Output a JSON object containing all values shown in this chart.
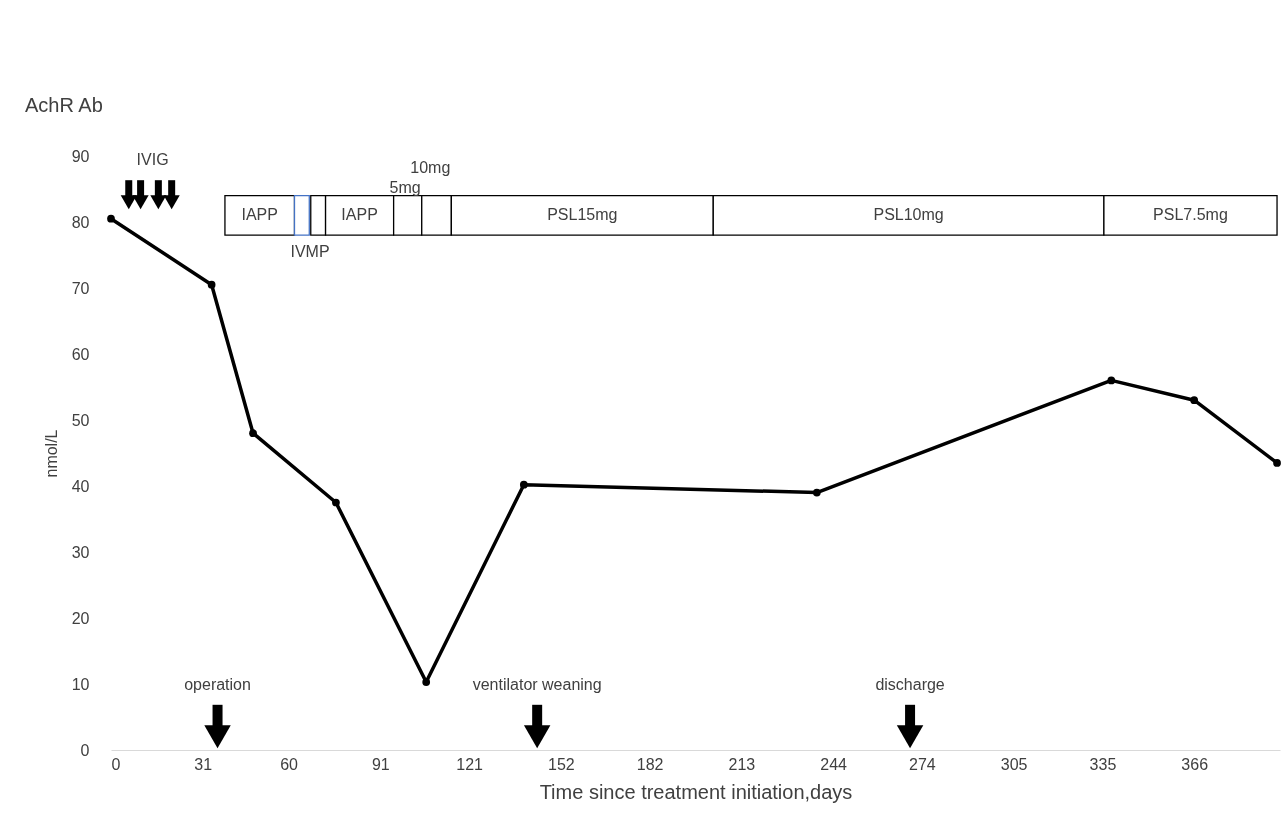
{
  "chart_data": {
    "type": "line",
    "title": "AchR Ab",
    "xlabel": "Time since treatment initiation,days",
    "ylabel": "nmol/L",
    "xlim": [
      0,
      395
    ],
    "xticks": [
      0,
      31,
      60,
      91,
      121,
      152,
      182,
      213,
      244,
      274,
      305,
      335,
      366
    ],
    "ylim": [
      0,
      90
    ],
    "yticks": [
      0,
      10,
      20,
      30,
      40,
      50,
      60,
      70,
      80,
      90
    ],
    "grid": false,
    "marker": "circle",
    "line_style": "solid",
    "series": [
      {
        "color": "#000000",
        "x": [
          0,
          34,
          48,
          76,
          106.5,
          139.5,
          238.5,
          338,
          366,
          394
        ],
        "values": [
          80.5,
          70.5,
          48,
          37.5,
          10.3,
          40.2,
          39,
          56,
          53,
          43.5
        ]
      },
      {
        "type": "scatter",
        "marker": "triangle",
        "color": "#000000",
        "x": [
          6,
          10,
          16,
          20.5
        ],
        "values": [
          83,
          83,
          83,
          83
        ],
        "value_labels": [
          null,
          "IVIG",
          null,
          null
        ]
      },
      {
        "type": "scatter",
        "marker": "triangle",
        "color": "#000000",
        "x": [
          36,
          144,
          270
        ],
        "values": [
          2,
          2,
          2
        ],
        "value_labels": [
          "operation",
          "ventilator weaning",
          "discharge"
        ]
      }
    ],
    "bands": [
      {
        "axis": "x",
        "from": 38.5,
        "to": 62,
        "label": "IAPP"
      },
      {
        "axis": "x",
        "from": 62,
        "to": 67,
        "label": "IVMP",
        "color": "#4472c4"
      },
      {
        "axis": "x",
        "from": 67.5,
        "to": 72.5,
        "label": null
      },
      {
        "axis": "x",
        "from": 72.5,
        "to": 95.5,
        "label": "IAPP"
      },
      {
        "axis": "x",
        "from": 95.5,
        "to": 105,
        "label": "5mg"
      },
      {
        "axis": "x",
        "from": 105,
        "to": 115,
        "label": "10mg"
      },
      {
        "axis": "x",
        "from": 115,
        "to": 203.5,
        "label": "PSL15mg"
      },
      {
        "axis": "x",
        "from": 203.5,
        "to": 335.5,
        "label": "PSL10mg"
      },
      {
        "axis": "x",
        "from": 335.5,
        "to": 394,
        "label": "PSL7.5mg"
      }
    ]
  }
}
